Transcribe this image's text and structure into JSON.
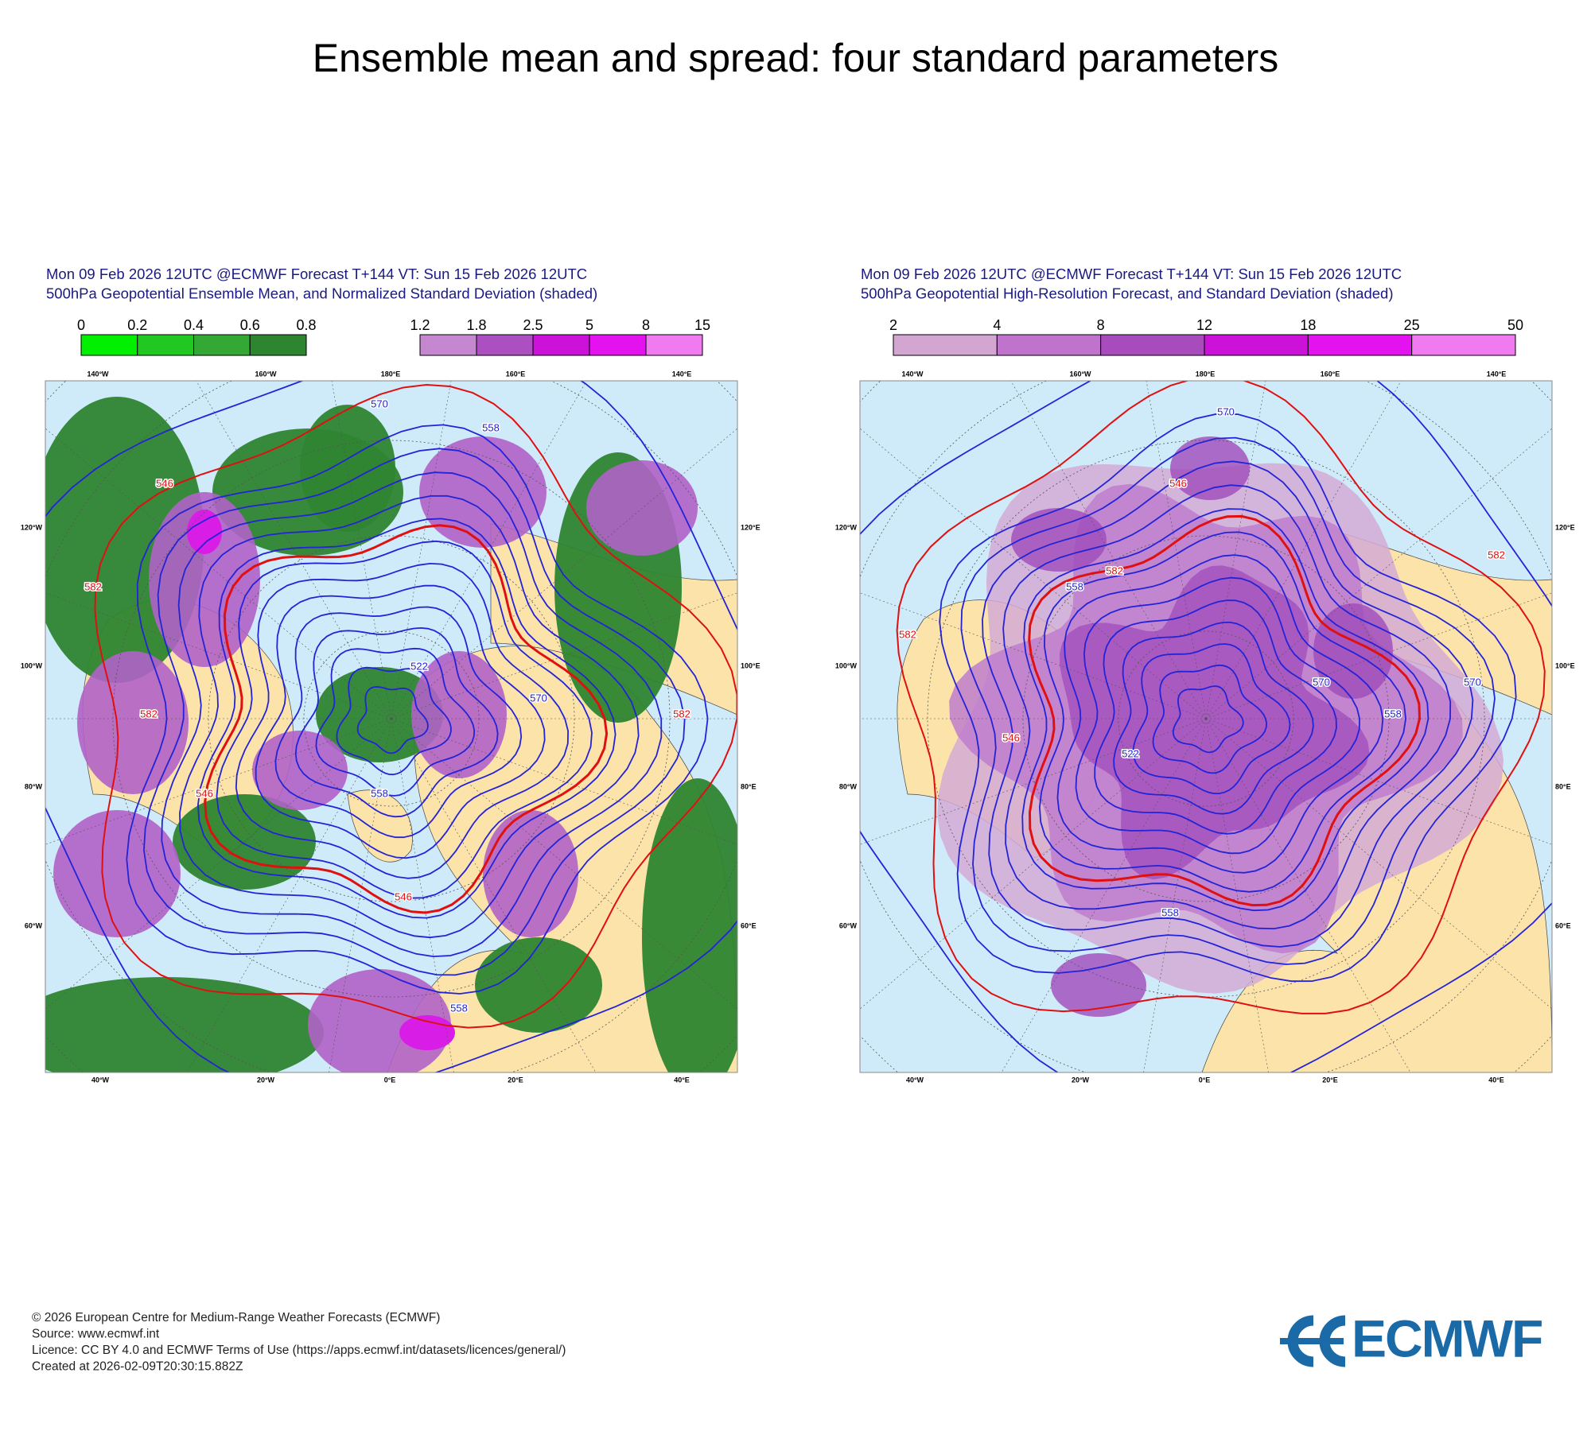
{
  "title": "Ensemble mean and spread: four standard parameters",
  "panels": [
    {
      "header": [
        "Mon 09 Feb 2026 12UTC @ECMWF Forecast T+144 VT: Sun 15 Feb 2026 12UTC",
        "500hPa Geopotential Ensemble Mean, and Normalized Standard Deviation (shaded)"
      ],
      "colorbars": [
        {
          "ticks": [
            0,
            0.2,
            0.4,
            0.6,
            0.8
          ],
          "colors": [
            "#00f000",
            "#22c822",
            "#34a834",
            "#2e8530"
          ]
        },
        {
          "ticks": [
            1.2,
            1.8,
            2.5,
            5,
            8,
            15
          ],
          "colors": [
            "#c487d0",
            "#ac4fc0",
            "#cc12d8",
            "#e312ee",
            "#f07af0"
          ]
        }
      ],
      "contour_labels": [
        546,
        582,
        570,
        558,
        582,
        522,
        546,
        558,
        570,
        582,
        546,
        558
      ]
    },
    {
      "header": [
        "Mon 09 Feb 2026 12UTC @ECMWF Forecast T+144 VT: Sun 15 Feb 2026 12UTC",
        "500hPa Geopotential High-Resolution Forecast, and Standard Deviation (shaded)"
      ],
      "colorbars": [
        {
          "ticks": [
            2,
            4,
            8,
            12,
            18,
            25,
            50
          ],
          "colors": [
            "#d2a6d0",
            "#c073cc",
            "#a84cbd",
            "#cc12d8",
            "#e312ee",
            "#f07af0"
          ]
        }
      ],
      "contour_labels": [
        546,
        582,
        570,
        558,
        582,
        522,
        570,
        558,
        570,
        582,
        546,
        558
      ]
    }
  ],
  "map_labels": {
    "top": [
      "140°W",
      "160°W",
      "180°E",
      "160°E",
      "140°E"
    ],
    "left": [
      "120°W",
      "100°W",
      "80°W",
      "60°W"
    ],
    "right": [
      "120°E",
      "100°E",
      "80°E",
      "60°E"
    ],
    "bottom": [
      "40°W",
      "20°W",
      "0°E",
      "20°E",
      "40°E"
    ]
  },
  "footer": [
    "© 2026 European Centre for Medium-Range Weather Forecasts (ECMWF)",
    "Source: www.ecmwf.int",
    "Licence: CC BY 4.0 and ECMWF Terms of Use (https://apps.ecmwf.int/datasets/licences/general/)",
    "Created at 2026-02-09T20:30:15.882Z"
  ],
  "logo": "ECMWF"
}
